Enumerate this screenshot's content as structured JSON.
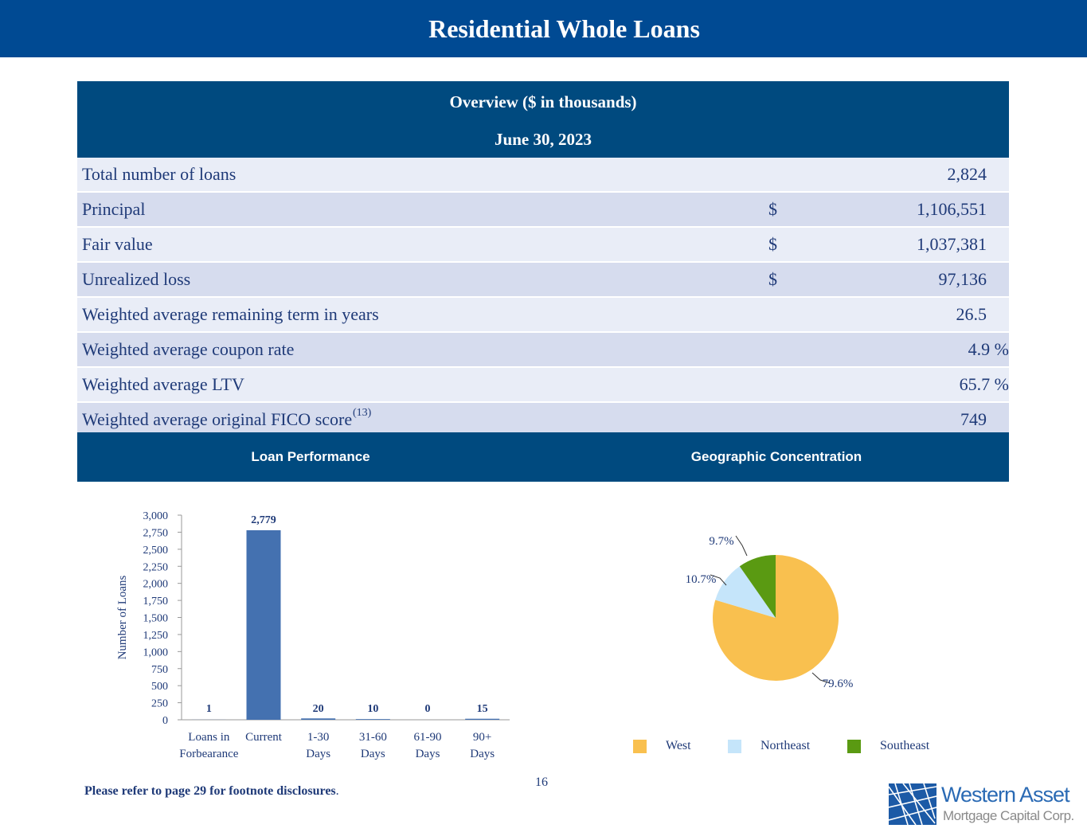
{
  "header": {
    "title": "Residential Whole Loans"
  },
  "overview": {
    "title": "Overview ($ in thousands)",
    "date": "June 30, 2023",
    "rows": [
      {
        "label": "Total number of loans",
        "sup": "",
        "dollar": "",
        "value": "2,824"
      },
      {
        "label": "Principal",
        "sup": "",
        "dollar": "$",
        "value": "1,106,551"
      },
      {
        "label": "Fair value",
        "sup": "",
        "dollar": "$",
        "value": "1,037,381"
      },
      {
        "label": "Unrealized loss",
        "sup": "",
        "dollar": "$",
        "value": "97,136"
      },
      {
        "label": "Weighted average remaining term in years",
        "sup": "",
        "dollar": "",
        "value": "26.5"
      },
      {
        "label": "Weighted average coupon rate",
        "sup": "",
        "dollar": "",
        "value": "4.9 %"
      },
      {
        "label": "Weighted average LTV",
        "sup": "",
        "dollar": "",
        "value": "65.7 %"
      },
      {
        "label": "Weighted average original FICO score",
        "sup": "(13)",
        "dollar": "",
        "value": "749"
      }
    ]
  },
  "sections": {
    "loan_performance": "Loan Performance",
    "geographic": "Geographic Concentration"
  },
  "chart_data": [
    {
      "type": "bar",
      "categories": [
        [
          "Loans in",
          "Forbearance"
        ],
        [
          "Current"
        ],
        [
          "1-30",
          "Days"
        ],
        [
          "31-60",
          "Days"
        ],
        [
          "61-90",
          "Days"
        ],
        [
          "90+",
          "Days"
        ]
      ],
      "values": [
        1,
        2779,
        20,
        10,
        0,
        15
      ],
      "value_labels": [
        "1",
        "2,779",
        "20",
        "10",
        "0",
        "15"
      ],
      "ylabel": "Number of Loans",
      "ylim": [
        0,
        3000
      ],
      "yticks": [
        "0",
        "250",
        "500",
        "750",
        "1,000",
        "1,250",
        "1,500",
        "1,750",
        "2,000",
        "2,250",
        "2,500",
        "2,750",
        "3,000"
      ],
      "bar_color": "#4471b0"
    },
    {
      "type": "pie",
      "labels": [
        "West",
        "Northeast",
        "Southeast"
      ],
      "values": [
        79.6,
        10.7,
        9.7
      ],
      "value_labels": [
        "79.6%",
        "10.7%",
        "9.7%"
      ],
      "colors": [
        "#f9c04f",
        "#c5e5fa",
        "#5a9a12"
      ],
      "legend": "bottom"
    }
  ],
  "footer": {
    "note": "Please refer to page 29 for footnote disclosures",
    "note_end": ".",
    "page": "16",
    "logo_name": "Western Asset",
    "logo_sub": "Mortgage Capital Corp."
  }
}
